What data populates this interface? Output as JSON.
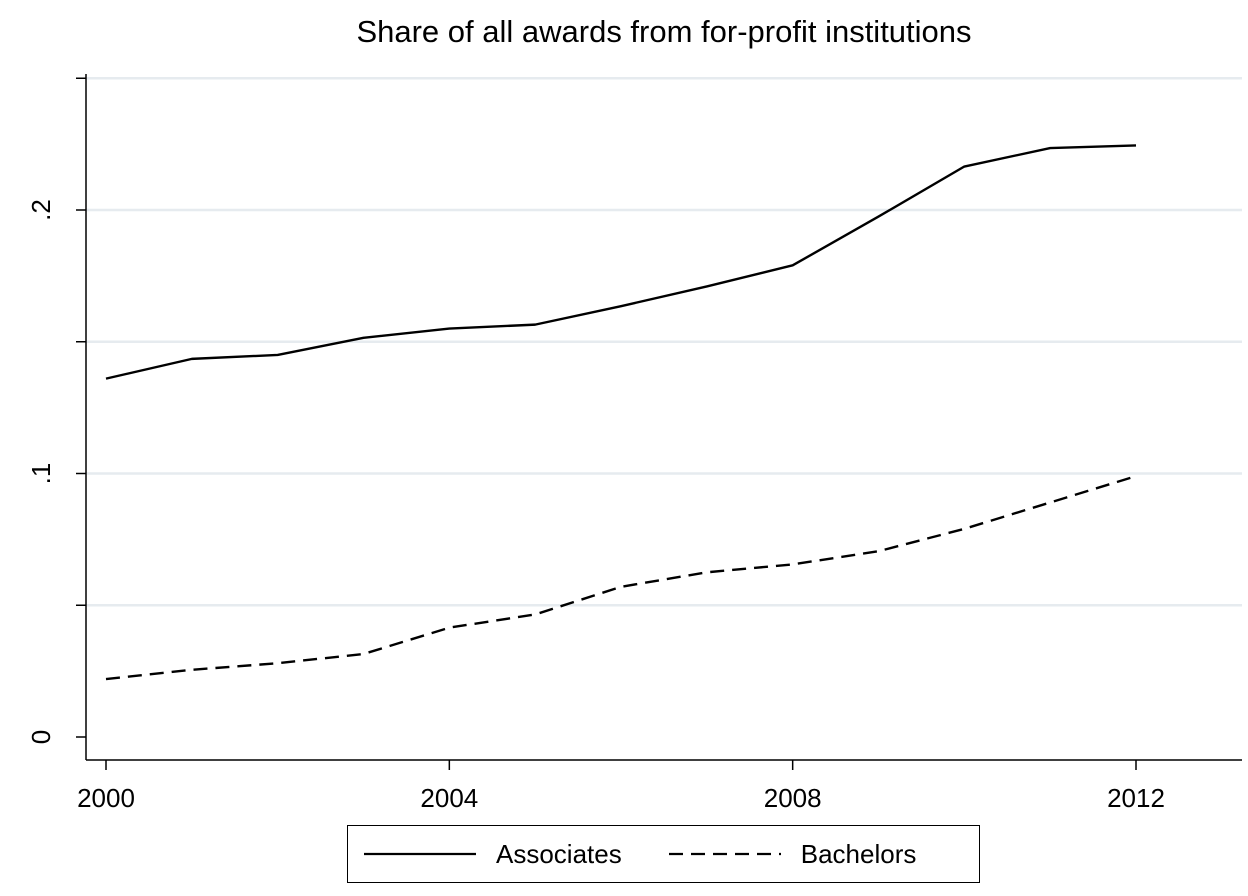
{
  "chart_data": {
    "type": "line",
    "title": "Share of all awards from for-profit institutions",
    "xlabel": "",
    "ylabel": "",
    "x": [
      2000,
      2001,
      2002,
      2003,
      2004,
      2005,
      2006,
      2007,
      2008,
      2009,
      2010,
      2011,
      2012
    ],
    "xlim": [
      2000,
      2013
    ],
    "ylim": [
      -0.01,
      0.25
    ],
    "x_ticks": [
      2000,
      2004,
      2008,
      2012
    ],
    "y_ticks": [
      0,
      0.05,
      0.1,
      0.15,
      0.2,
      0.25
    ],
    "y_tick_labels": [
      "0",
      "",
      ".1",
      "",
      ".2",
      ""
    ],
    "grid": true,
    "legend_position": "bottom",
    "series": [
      {
        "name": "Associates",
        "style": "solid",
        "color": "#000000",
        "values": [
          0.136,
          0.1435,
          0.145,
          0.1515,
          0.155,
          0.1565,
          0.1635,
          0.171,
          0.179,
          0.1975,
          0.2165,
          0.2235,
          0.2245
        ]
      },
      {
        "name": "Bachelors",
        "style": "dashed",
        "color": "#000000",
        "values": [
          0.022,
          0.0255,
          0.028,
          0.0315,
          0.0415,
          0.0465,
          0.057,
          0.0625,
          0.0655,
          0.0705,
          0.079,
          0.089,
          0.099
        ]
      }
    ]
  }
}
